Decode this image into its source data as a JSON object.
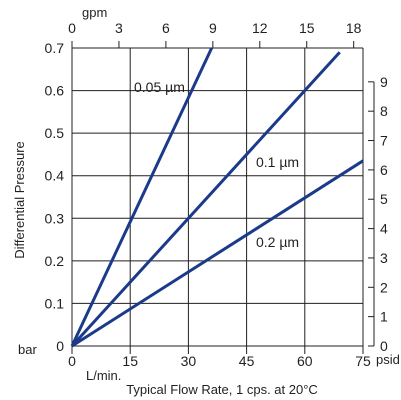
{
  "chart_data": {
    "type": "line",
    "title": "",
    "xlabel": "Typical Flow Rate, 1 cps. at 20°C",
    "ylabel": "Differential Pressure",
    "x_unit": "L/min.",
    "y_unit": "bar",
    "x_top_unit": "gpm",
    "y_right_unit": "psid",
    "xlim": [
      0,
      75
    ],
    "ylim": [
      0,
      0.7
    ],
    "x_ticks": [
      0,
      15,
      30,
      45,
      60,
      75
    ],
    "x_tick_labels": [
      "0",
      "15",
      "30",
      "45",
      "60",
      "75"
    ],
    "y_ticks": [
      0,
      0.1,
      0.2,
      0.3,
      0.4,
      0.5,
      0.6,
      0.7
    ],
    "y_tick_labels": [
      "0",
      "0.1",
      "0.2",
      "0.3",
      "0.4",
      "0.5",
      "0.6",
      "0.7"
    ],
    "x_top_ticks": [
      0,
      3,
      6,
      9,
      12,
      15,
      18
    ],
    "x_top_tick_labels": [
      "0",
      "3",
      "6",
      "9",
      "12",
      "15",
      "18"
    ],
    "y_right_ticks": [
      0,
      1,
      2,
      3,
      4,
      5,
      6,
      7,
      8,
      9
    ],
    "y_right_tick_labels": [
      "0",
      "1",
      "2",
      "3",
      "4",
      "5",
      "6",
      "7",
      "8",
      "9"
    ],
    "grid": true,
    "line_color": "#1b3a8a",
    "series": [
      {
        "name": "0.05 µm",
        "x": [
          0,
          36
        ],
        "y": [
          0,
          0.7
        ]
      },
      {
        "name": "0.1 µm",
        "x": [
          0,
          69
        ],
        "y": [
          0,
          0.69
        ]
      },
      {
        "name": "0.2 µm",
        "x": [
          0,
          75
        ],
        "y": [
          0,
          0.435
        ]
      }
    ]
  }
}
